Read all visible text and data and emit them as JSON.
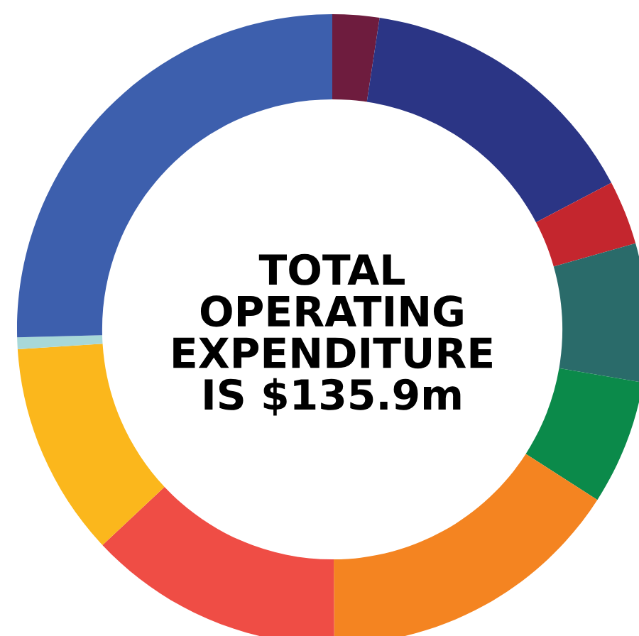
{
  "chart_data": {
    "type": "donut",
    "title": "TOTAL\nOPERATING\nEXPENDITURE\nIS $135.9m",
    "categories": [
      null,
      null,
      null,
      null,
      null,
      null,
      null,
      null,
      null,
      null
    ],
    "values": [
      2.4,
      14.9,
      3.3,
      7.1,
      6.4,
      15.8,
      13.1,
      11.0,
      0.6,
      25.4
    ],
    "colors": [
      "#6e1c3e",
      "#2b3585",
      "#c4262e",
      "#2a6b6a",
      "#0b8a4a",
      "#f48421",
      "#ef4d45",
      "#fbb71c",
      "#a8d8d8",
      "#3d5fad"
    ]
  }
}
